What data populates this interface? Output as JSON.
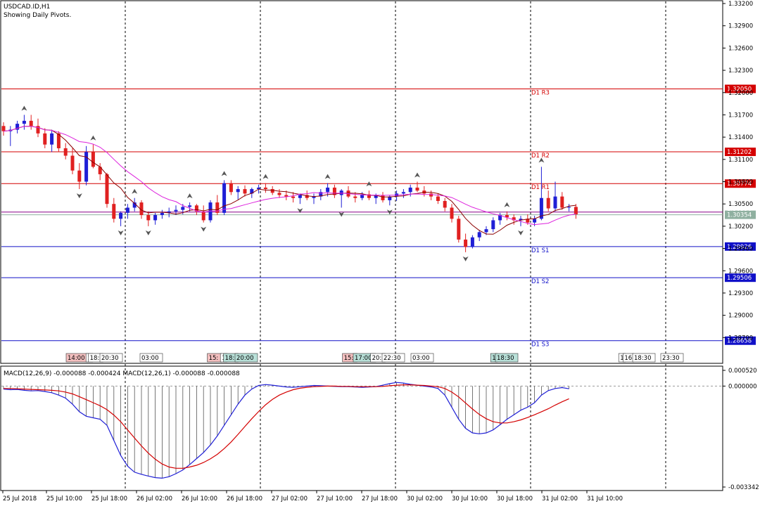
{
  "header": {
    "symbol_line": "USDCAD.ID,H1",
    "subtitle": "Showing Daily Pivots."
  },
  "colors": {
    "bull": "#1f1fd6",
    "bear": "#e02020",
    "pivot_resistance": "#d40000",
    "pivot_support": "#1010c8",
    "ma_fast": "#8b0000",
    "ma_slow": "#dd22dd",
    "macd_line": "#1f1fd6",
    "signal_line": "#d40000",
    "current_price_line": "#8fb0a0"
  },
  "chart_data": [
    {
      "type": "candlestick",
      "title": "USDCAD.ID,H1",
      "subtitle": "Showing Daily Pivots.",
      "ylim": [
        1.284,
        1.332
      ],
      "y_ticks": [
        "1.33200",
        "1.32900",
        "1.32600",
        "1.32300",
        "1.32000",
        "1.31700",
        "1.31400",
        "1.31100",
        "1.30800",
        "1.30500",
        "1.30200",
        "1.29900",
        "1.29600",
        "1.29300",
        "1.29000",
        "1.28700"
      ],
      "x_tick_labels": [
        "25 Jul 2018",
        "25 Jul 10:00",
        "25 Jul 18:00",
        "26 Jul 02:00",
        "26 Jul 10:00",
        "26 Jul 18:00",
        "27 Jul 02:00",
        "27 Jul 10:00",
        "27 Jul 18:00",
        "30 Jul 02:00",
        "30 Jul 10:00",
        "30 Jul 18:00",
        "31 Jul 02:00",
        "31 Jul 10:00"
      ],
      "pivots": [
        {
          "name": "D1 R3",
          "value": "1.32050",
          "y": 1.3205,
          "kind": "resistance"
        },
        {
          "name": "D1 R2",
          "value": "1.31202",
          "y": 1.31202,
          "kind": "resistance"
        },
        {
          "name": "D1 R1",
          "value": "1.30774",
          "y": 1.30774,
          "kind": "resistance"
        },
        {
          "name": "D1 S1",
          "value": "1.29926",
          "y": 1.29926,
          "kind": "support"
        },
        {
          "name": "D1 S2",
          "value": "1.29506",
          "y": 1.29506,
          "kind": "support"
        },
        {
          "name": "D1 S3",
          "value": "1.28658",
          "y": 1.28658,
          "kind": "support"
        }
      ],
      "current_price": {
        "value": "1.30354",
        "y": 1.30354
      },
      "daily_pivot": {
        "value": "1.30390",
        "y": 1.3039
      },
      "candles_ohlc": [
        [
          1.3155,
          1.316,
          1.3142,
          1.3148
        ],
        [
          1.3148,
          1.3155,
          1.3128,
          1.315
        ],
        [
          1.315,
          1.3162,
          1.3145,
          1.3158
        ],
        [
          1.3158,
          1.317,
          1.315,
          1.3162
        ],
        [
          1.3162,
          1.317,
          1.315,
          1.3155
        ],
        [
          1.3155,
          1.3165,
          1.314,
          1.3145
        ],
        [
          1.3145,
          1.3152,
          1.3125,
          1.313
        ],
        [
          1.313,
          1.315,
          1.312,
          1.3145
        ],
        [
          1.3145,
          1.3148,
          1.312,
          1.3125
        ],
        [
          1.3125,
          1.3132,
          1.311,
          1.3115
        ],
        [
          1.3115,
          1.3125,
          1.309,
          1.3095
        ],
        [
          1.3095,
          1.3105,
          1.307,
          1.308
        ],
        [
          1.308,
          1.3128,
          1.3075,
          1.312
        ],
        [
          1.312,
          1.313,
          1.3098,
          1.31
        ],
        [
          1.31,
          1.3105,
          1.3082,
          1.309
        ],
        [
          1.309,
          1.3092,
          1.3045,
          1.305
        ],
        [
          1.305,
          1.3058,
          1.3025,
          1.303
        ],
        [
          1.303,
          1.304,
          1.302,
          1.3038
        ],
        [
          1.3038,
          1.305,
          1.303,
          1.3045
        ],
        [
          1.3045,
          1.3058,
          1.304,
          1.3052
        ],
        [
          1.3052,
          1.3055,
          1.303,
          1.3035
        ],
        [
          1.3035,
          1.304,
          1.302,
          1.3028
        ],
        [
          1.3028,
          1.3038,
          1.3022,
          1.3035
        ],
        [
          1.3035,
          1.3042,
          1.303,
          1.3038
        ],
        [
          1.3038,
          1.3045,
          1.3032,
          1.304
        ],
        [
          1.304,
          1.3048,
          1.3035,
          1.3042
        ],
        [
          1.3042,
          1.305,
          1.3036,
          1.3046
        ],
        [
          1.3046,
          1.3052,
          1.304,
          1.3048
        ],
        [
          1.3048,
          1.305,
          1.3035,
          1.304
        ],
        [
          1.304,
          1.3048,
          1.3025,
          1.3028
        ],
        [
          1.3028,
          1.3055,
          1.3025,
          1.3052
        ],
        [
          1.3052,
          1.3062,
          1.3035,
          1.3038
        ],
        [
          1.3038,
          1.3082,
          1.3035,
          1.3078
        ],
        [
          1.3078,
          1.3082,
          1.3062,
          1.3066
        ],
        [
          1.3066,
          1.3074,
          1.3056,
          1.307
        ],
        [
          1.307,
          1.3075,
          1.306,
          1.3064
        ],
        [
          1.3064,
          1.3072,
          1.3058,
          1.307
        ],
        [
          1.307,
          1.3076,
          1.3064,
          1.3072
        ],
        [
          1.3072,
          1.3078,
          1.3065,
          1.307
        ],
        [
          1.307,
          1.3074,
          1.3062,
          1.3065
        ],
        [
          1.3065,
          1.307,
          1.3058,
          1.3062
        ],
        [
          1.3062,
          1.3068,
          1.3055,
          1.306
        ],
        [
          1.306,
          1.3066,
          1.3052,
          1.3058
        ],
        [
          1.3058,
          1.3064,
          1.305,
          1.3062
        ],
        [
          1.3062,
          1.3068,
          1.3055,
          1.3058
        ],
        [
          1.3058,
          1.3064,
          1.305,
          1.306
        ],
        [
          1.306,
          1.307,
          1.3055,
          1.3066
        ],
        [
          1.3066,
          1.3078,
          1.306,
          1.3072
        ],
        [
          1.3072,
          1.3076,
          1.3058,
          1.3062
        ],
        [
          1.3062,
          1.307,
          1.3045,
          1.3068
        ],
        [
          1.3068,
          1.3074,
          1.3058,
          1.306
        ],
        [
          1.306,
          1.3066,
          1.3052,
          1.3058
        ],
        [
          1.3058,
          1.3066,
          1.3055,
          1.3063
        ],
        [
          1.3063,
          1.3068,
          1.3055,
          1.3058
        ],
        [
          1.3058,
          1.3064,
          1.305,
          1.3062
        ],
        [
          1.3062,
          1.3066,
          1.3052,
          1.3055
        ],
        [
          1.3055,
          1.3062,
          1.3048,
          1.306
        ],
        [
          1.306,
          1.3068,
          1.3054,
          1.3064
        ],
        [
          1.3064,
          1.307,
          1.3058,
          1.3066
        ],
        [
          1.3066,
          1.3076,
          1.306,
          1.3072
        ],
        [
          1.3072,
          1.308,
          1.3066,
          1.3068
        ],
        [
          1.3068,
          1.3074,
          1.306,
          1.3064
        ],
        [
          1.3064,
          1.3068,
          1.3055,
          1.306
        ],
        [
          1.306,
          1.3064,
          1.305,
          1.3054
        ],
        [
          1.3054,
          1.3058,
          1.304,
          1.3045
        ],
        [
          1.3045,
          1.305,
          1.3025,
          1.303
        ],
        [
          1.303,
          1.3034,
          1.2998,
          1.3002
        ],
        [
          1.3002,
          1.301,
          1.2985,
          1.2992
        ],
        [
          1.2992,
          1.3008,
          1.299,
          1.3005
        ],
        [
          1.3005,
          1.3015,
          1.3,
          1.3012
        ],
        [
          1.3012,
          1.302,
          1.3008,
          1.3016
        ],
        [
          1.3016,
          1.3032,
          1.3012,
          1.3028
        ],
        [
          1.3028,
          1.3038,
          1.3022,
          1.3035
        ],
        [
          1.3035,
          1.304,
          1.3028,
          1.3032
        ],
        [
          1.3032,
          1.3036,
          1.3022,
          1.3028
        ],
        [
          1.3028,
          1.3034,
          1.302,
          1.303
        ],
        [
          1.303,
          1.3036,
          1.3022,
          1.3025
        ],
        [
          1.3025,
          1.3034,
          1.302,
          1.303
        ],
        [
          1.303,
          1.31,
          1.3028,
          1.3058
        ],
        [
          1.3058,
          1.3068,
          1.304,
          1.3044
        ],
        [
          1.3044,
          1.308,
          1.304,
          1.306
        ],
        [
          1.306,
          1.3066,
          1.3042,
          1.3045
        ],
        [
          1.3045,
          1.305,
          1.304,
          1.3046
        ],
        [
          1.3046,
          1.305,
          1.303,
          1.3036
        ]
      ],
      "time_labels": [
        {
          "text": "14:00",
          "x": 110,
          "bg": "#f4c0c0"
        },
        {
          "text": "1",
          "x": 127,
          "bg": "#ffffff"
        },
        {
          "text": "18:",
          "x": 136,
          "bg": "#ffffff"
        },
        {
          "text": "20:30",
          "x": 158,
          "bg": "#ffffff"
        },
        {
          "text": "03:00",
          "x": 215,
          "bg": "#ffffff"
        },
        {
          "text": "15:",
          "x": 305,
          "bg": "#f4c0c0"
        },
        {
          "text": "1",
          "x": 318,
          "bg": "#ffffff"
        },
        {
          "text": "18:",
          "x": 328,
          "bg": "#b8e0d8"
        },
        {
          "text": "20:00",
          "x": 350,
          "bg": "#b8e0d8"
        },
        {
          "text": "15:",
          "x": 497,
          "bg": "#f4c0c0"
        },
        {
          "text": "17:00",
          "x": 518,
          "bg": "#b8e0d8"
        },
        {
          "text": "20:",
          "x": 537,
          "bg": "#ffffff"
        },
        {
          "text": "22:30",
          "x": 559,
          "bg": "#ffffff"
        },
        {
          "text": "03:00",
          "x": 600,
          "bg": "#ffffff"
        },
        {
          "text": "1",
          "x": 702,
          "bg": "#b8e0d8"
        },
        {
          "text": "18:30",
          "x": 720,
          "bg": "#b8e0d8"
        },
        {
          "text": "1",
          "x": 884,
          "bg": "#ffffff"
        },
        {
          "text": "16",
          "x": 893,
          "bg": "#ffffff"
        },
        {
          "text": "18:30",
          "x": 915,
          "bg": "#ffffff"
        },
        {
          "text": "23:30",
          "x": 955,
          "bg": "#ffffff"
        }
      ]
    },
    {
      "type": "line",
      "title": "MACD(12,26,9) -0.000088 -0.000424 MACD(12,26,1) -0.000088 -0.000088",
      "ylim": [
        -0.003342,
        0.00052
      ],
      "y_ticks": [
        "0.000520",
        "0.000000",
        "-0.003342"
      ],
      "series": [
        {
          "name": "MACD",
          "values": [
            -0.0001,
            -0.00012,
            -0.00011,
            -0.00014,
            -0.00016,
            -0.00015,
            -0.00018,
            -0.00022,
            -0.0003,
            -0.0004,
            -0.0006,
            -0.00085,
            -0.001,
            -0.00105,
            -0.0011,
            -0.0013,
            -0.0018,
            -0.0023,
            -0.00265,
            -0.00285,
            -0.00292,
            -0.00298,
            -0.00303,
            -0.00305,
            -0.003,
            -0.0029,
            -0.00278,
            -0.0026,
            -0.0024,
            -0.0022,
            -0.00195,
            -0.00165,
            -0.0013,
            -0.00095,
            -0.0006,
            -0.0003,
            -0.0001,
            2e-05,
            5e-05,
            3e-05,
            0.0,
            -3e-05,
            -4e-05,
            -2e-05,
            0.0,
            2e-05,
            1e-05,
            0.0,
            -1e-05,
            -2e-05,
            -2e-05,
            -3e-05,
            -4e-05,
            -3e-05,
            -2e-05,
            3e-05,
            8e-05,
            0.00012,
            0.0001,
            6e-05,
            3e-05,
            0.0,
            -3e-05,
            -8e-05,
            -0.0003,
            -0.0007,
            -0.0011,
            -0.0014,
            -0.00155,
            -0.00158,
            -0.00155,
            -0.00145,
            -0.00128,
            -0.0011,
            -0.00095,
            -0.0008,
            -0.0007,
            -0.00055,
            -0.0003,
            -0.00015,
            -8e-05,
            -5e-05,
            -9e-05
          ]
        },
        {
          "name": "Signal",
          "values": [
            -8e-05,
            -8e-05,
            -9e-05,
            -0.0001,
            -0.00011,
            -0.00012,
            -0.00013,
            -0.00014,
            -0.00016,
            -0.0002,
            -0.00026,
            -0.00035,
            -0.00045,
            -0.00055,
            -0.00065,
            -0.00078,
            -0.00096,
            -0.00118,
            -0.00145,
            -0.00172,
            -0.00198,
            -0.00222,
            -0.00242,
            -0.00258,
            -0.00268,
            -0.00272,
            -0.00272,
            -0.00268,
            -0.00262,
            -0.00253,
            -0.00241,
            -0.00226,
            -0.00207,
            -0.00185,
            -0.0016,
            -0.00134,
            -0.00108,
            -0.00084,
            -0.00062,
            -0.00044,
            -0.0003,
            -0.0002,
            -0.00012,
            -7e-05,
            -4e-05,
            -2e-05,
            -1e-05,
            0.0,
            0.0,
            -1e-05,
            -1e-05,
            -2e-05,
            -2e-05,
            -2e-05,
            -2e-05,
            -1e-05,
            1e-05,
            3e-05,
            4e-05,
            4e-05,
            3e-05,
            2e-05,
            0.0,
            -2e-05,
            -8e-05,
            -0.0002,
            -0.00036,
            -0.00056,
            -0.00076,
            -0.00094,
            -0.00108,
            -0.00118,
            -0.00122,
            -0.00122,
            -0.00118,
            -0.00112,
            -0.00104,
            -0.00095,
            -0.00085,
            -0.00075,
            -0.00063,
            -0.00052,
            -0.00042
          ]
        }
      ]
    }
  ]
}
